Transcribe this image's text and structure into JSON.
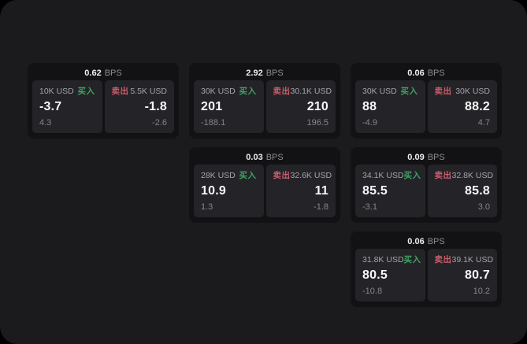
{
  "labels": {
    "bps_unit": "BPS",
    "buy": "买入",
    "sell": "卖出"
  },
  "colors": {
    "buy": "#3fa363",
    "sell": "#cd5c6c",
    "page-bg": "#1b1b1d",
    "card-bg": "#121214",
    "panel-bg": "#242428"
  },
  "cards": [
    {
      "bps": "0.62",
      "buy": {
        "amount": "10K USD",
        "price": "-3.7",
        "delta": "4.3"
      },
      "sell": {
        "amount": "5.5K USD",
        "price": "-1.8",
        "delta": "-2.6"
      }
    },
    {
      "bps": "2.92",
      "buy": {
        "amount": "30K USD",
        "price": "201",
        "delta": "-188.1"
      },
      "sell": {
        "amount": "30.1K USD",
        "price": "210",
        "delta": "196.5"
      }
    },
    {
      "bps": "0.06",
      "buy": {
        "amount": "30K USD",
        "price": "88",
        "delta": "-4.9"
      },
      "sell": {
        "amount": "30K USD",
        "price": "88.2",
        "delta": "4.7"
      }
    },
    {
      "bps": "0.03",
      "buy": {
        "amount": "28K USD",
        "price": "10.9",
        "delta": "1.3"
      },
      "sell": {
        "amount": "32.6K USD",
        "price": "11",
        "delta": "-1.8"
      }
    },
    {
      "bps": "0.09",
      "buy": {
        "amount": "34.1K USD",
        "price": "85.5",
        "delta": "-3.1"
      },
      "sell": {
        "amount": "32.8K USD",
        "price": "85.8",
        "delta": "3.0"
      }
    },
    {
      "bps": "0.06",
      "buy": {
        "amount": "31.8K USD",
        "price": "80.5",
        "delta": "-10.8"
      },
      "sell": {
        "amount": "39.1K USD",
        "price": "80.7",
        "delta": "10.2"
      }
    }
  ]
}
